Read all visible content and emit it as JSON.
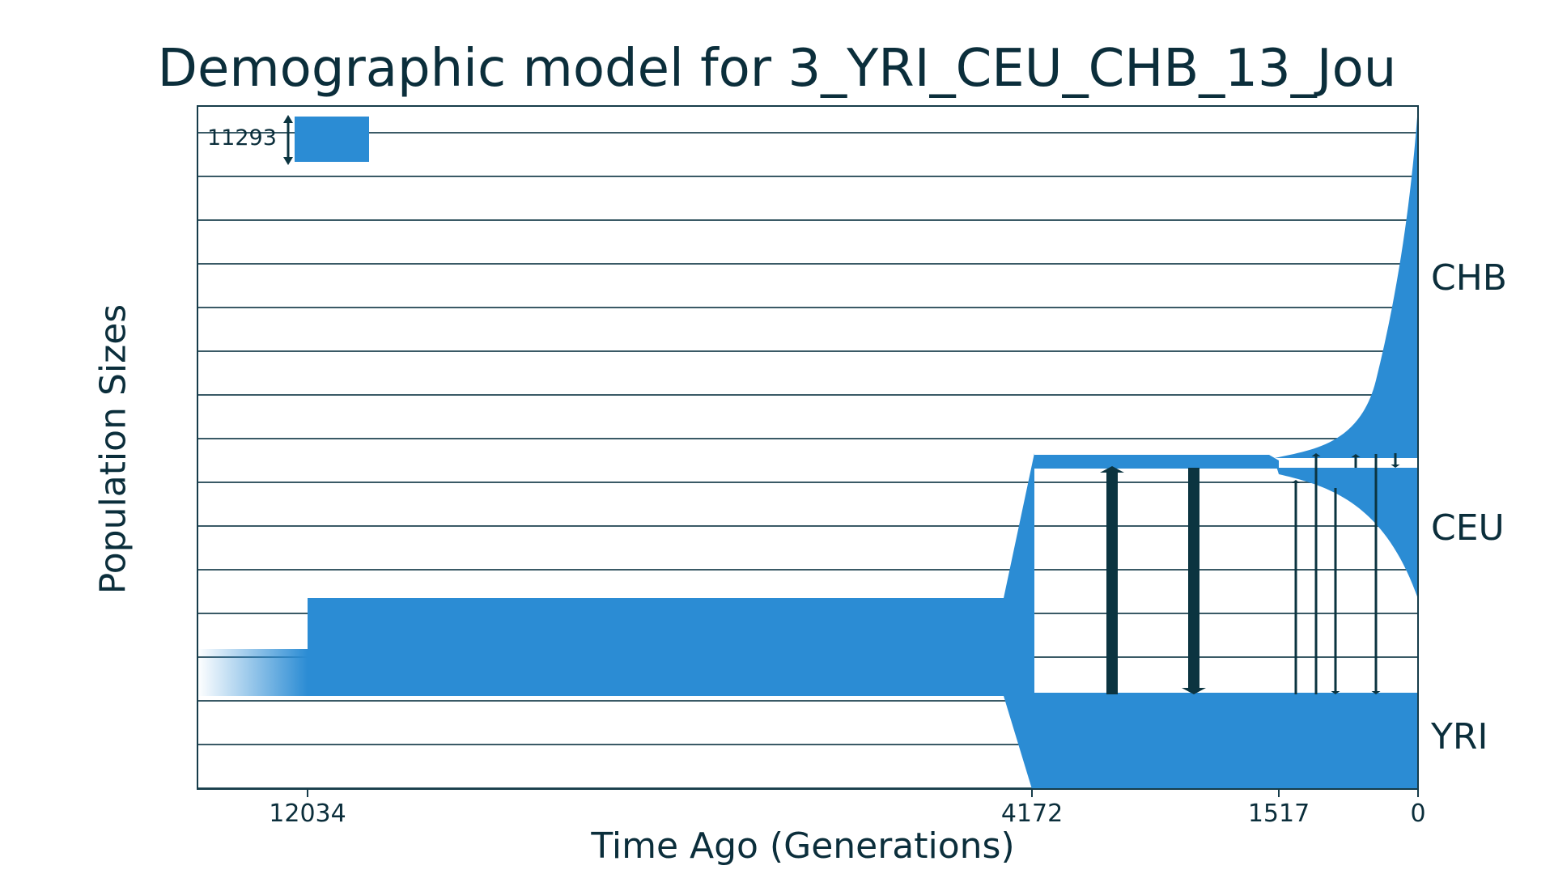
{
  "chart_data": {
    "type": "demographic_model",
    "title": "Demographic model for 3_YRI_CEU_CHB_13_Jou",
    "xlabel": "Time Ago (Generations)",
    "ylabel": "Population Sizes",
    "xticks": [
      12034,
      4172,
      1517,
      0
    ],
    "xtick_labels": [
      "12034",
      "4172",
      "1517",
      "0"
    ],
    "x_direction": "reversed",
    "scale_bar": {
      "label": "11293",
      "size": 11293
    },
    "grid": true,
    "populations": [
      {
        "name": "YRI",
        "label": "YRI"
      },
      {
        "name": "CEU",
        "label": "CEU"
      },
      {
        "name": "CHB",
        "label": "CHB"
      }
    ],
    "events": [
      {
        "type": "size_change",
        "population": "ancestral",
        "time": 12034
      },
      {
        "type": "split",
        "time": 4172,
        "parent": "ancestral",
        "children": [
          "YRI",
          "CEU"
        ]
      },
      {
        "type": "split",
        "time": 1517,
        "parent": "CEU",
        "children": [
          "CEU",
          "CHB"
        ]
      }
    ],
    "growth": [
      {
        "population": "CEU",
        "start_time": 1517,
        "end_time": 0,
        "kind": "exponential"
      },
      {
        "population": "CHB",
        "start_time": 1517,
        "end_time": 0,
        "kind": "exponential"
      }
    ],
    "migration": [
      {
        "from": "YRI",
        "to": "CEU",
        "period": [
          4172,
          1517
        ],
        "strength": "high"
      },
      {
        "from": "CEU",
        "to": "YRI",
        "period": [
          4172,
          1517
        ],
        "strength": "high"
      },
      {
        "from": "YRI",
        "to": "CEU",
        "period": [
          1517,
          0
        ],
        "strength": "low"
      },
      {
        "from": "YRI",
        "to": "CHB",
        "period": [
          1517,
          0
        ],
        "strength": "low"
      },
      {
        "from": "CHB",
        "to": "YRI",
        "period": [
          1517,
          0
        ],
        "strength": "low"
      },
      {
        "from": "CEU",
        "to": "CHB",
        "period": [
          1517,
          0
        ],
        "strength": "low"
      },
      {
        "from": "CHB",
        "to": "CEU",
        "period": [
          1517,
          0
        ],
        "strength": "low"
      },
      {
        "from": "CHB",
        "to": "YRI",
        "period": [
          1517,
          0
        ],
        "strength": "low"
      }
    ],
    "colors": {
      "population": "#2b8cd4",
      "arrows": "#0b3440",
      "grid": "#3a5a66",
      "text": "#0b2e3b"
    }
  }
}
